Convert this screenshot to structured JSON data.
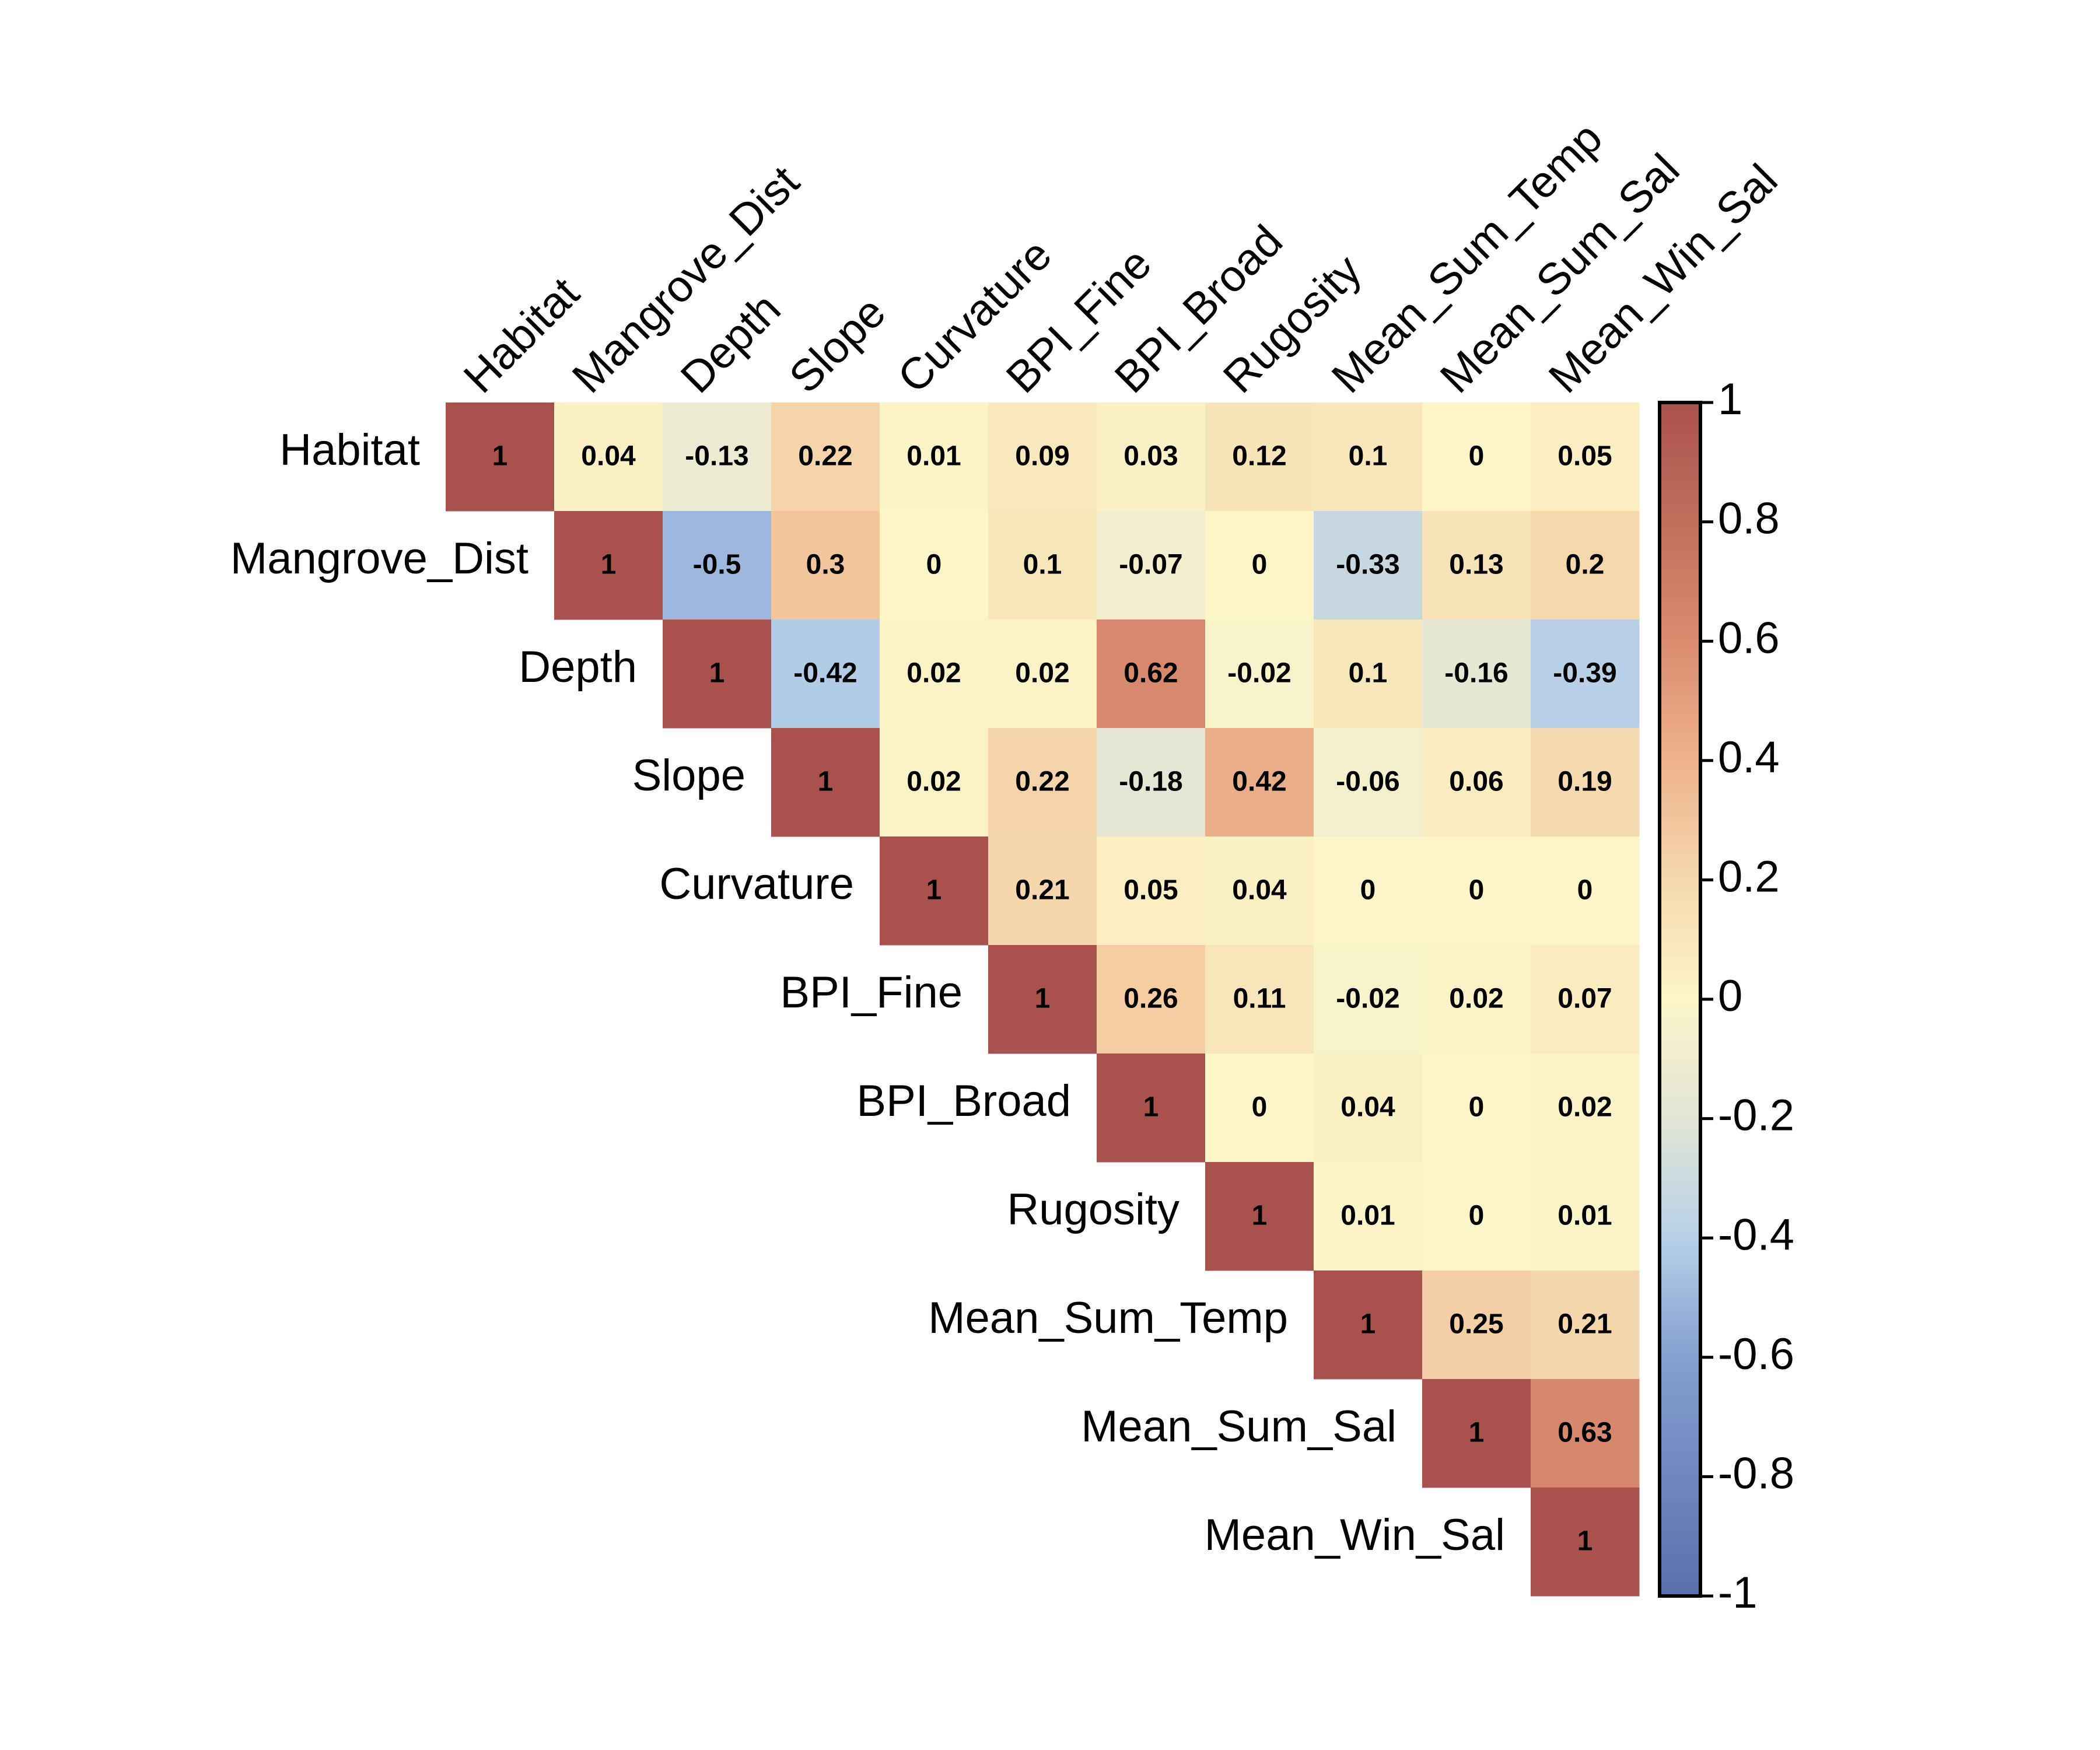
{
  "chart_data": {
    "type": "heatmap",
    "title": "",
    "variables": [
      "Habitat",
      "Mangrove_Dist",
      "Depth",
      "Slope",
      "Curvature",
      "BPI_Fine",
      "BPI_Broad",
      "Rugosity",
      "Mean_Sum_Temp",
      "Mean_Sum_Sal",
      "Mean_Win_Sal"
    ],
    "matrix_shape": "upper-triangular",
    "values": [
      [
        1,
        0.04,
        -0.13,
        0.22,
        0.01,
        0.09,
        0.03,
        0.12,
        0.1,
        0,
        0.05
      ],
      [
        null,
        1,
        -0.5,
        0.3,
        0,
        0.1,
        -0.07,
        0,
        -0.33,
        0.13,
        0.2
      ],
      [
        null,
        null,
        1,
        -0.42,
        0.02,
        0.02,
        0.62,
        -0.02,
        0.1,
        -0.16,
        -0.39
      ],
      [
        null,
        null,
        null,
        1,
        0.02,
        0.22,
        -0.18,
        0.42,
        -0.06,
        0.06,
        0.19
      ],
      [
        null,
        null,
        null,
        null,
        1,
        0.21,
        0.05,
        0.04,
        0,
        0,
        0
      ],
      [
        null,
        null,
        null,
        null,
        null,
        1,
        0.26,
        0.11,
        -0.02,
        0.02,
        0.07
      ],
      [
        null,
        null,
        null,
        null,
        null,
        null,
        1,
        0,
        0.04,
        0,
        0.02
      ],
      [
        null,
        null,
        null,
        null,
        null,
        null,
        null,
        1,
        0.01,
        0,
        0.01
      ],
      [
        null,
        null,
        null,
        null,
        null,
        null,
        null,
        null,
        1,
        0.25,
        0.21
      ],
      [
        null,
        null,
        null,
        null,
        null,
        null,
        null,
        null,
        null,
        1,
        0.63
      ],
      [
        null,
        null,
        null,
        null,
        null,
        null,
        null,
        null,
        null,
        null,
        1
      ]
    ],
    "color_scale": {
      "range": [
        -1,
        1
      ],
      "stops": [
        {
          "value": -1,
          "color": "#5a70ac"
        },
        {
          "value": -0.6,
          "color": "#83a0d0"
        },
        {
          "value": -0.4,
          "color": "#b7d0e8"
        },
        {
          "value": -0.2,
          "color": "#e2e5d5"
        },
        {
          "value": 0,
          "color": "#fcf5ca"
        },
        {
          "value": 0.2,
          "color": "#f6d8ad"
        },
        {
          "value": 0.4,
          "color": "#eeb28c"
        },
        {
          "value": 0.6,
          "color": "#da8b6e"
        },
        {
          "value": 1,
          "color": "#a9524d"
        }
      ],
      "ticks": [
        1,
        0.8,
        0.6,
        0.4,
        0.2,
        0,
        -0.2,
        -0.4,
        -0.6,
        -0.8,
        -1
      ],
      "tick_labels": [
        "1",
        "0.8",
        "0.6",
        "0.4",
        "0.2",
        "0",
        "-0.2",
        "-0.4",
        "-0.6",
        "-0.8",
        "-1"
      ]
    },
    "legend": "right"
  }
}
